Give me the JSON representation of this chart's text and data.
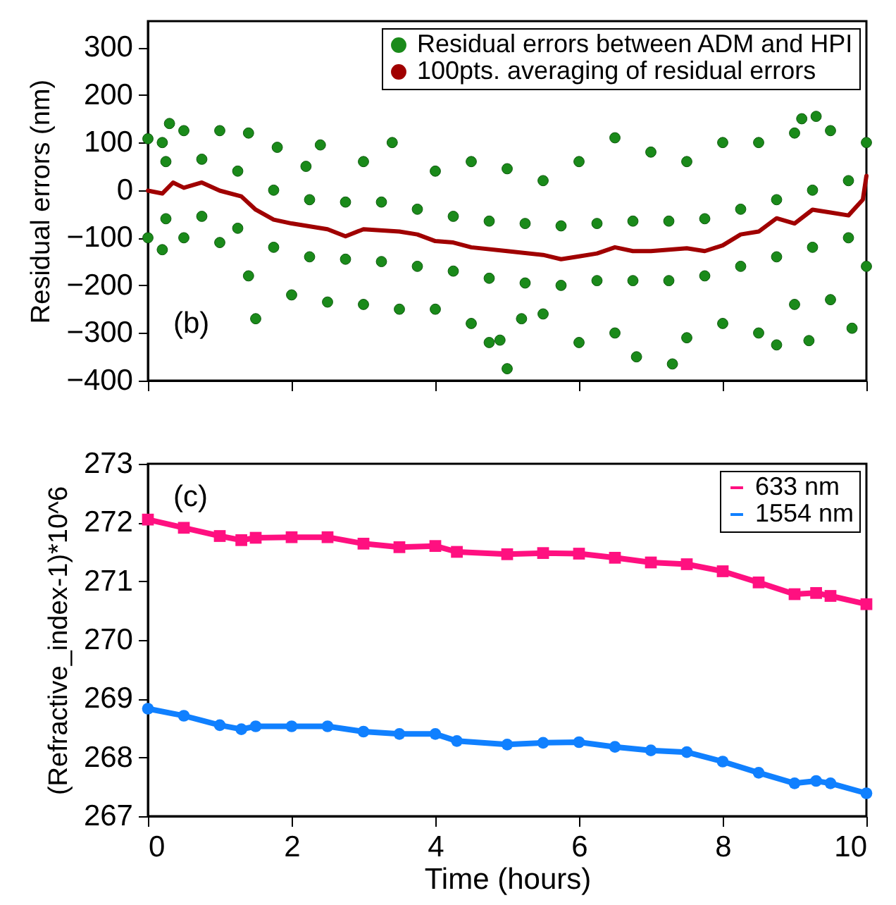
{
  "chart_data": [
    {
      "type": "scatter",
      "ylabel": "Residual errors (nm)",
      "xlim": [
        0,
        10
      ],
      "xticks": [
        0,
        2,
        4,
        6,
        8,
        10
      ],
      "ylim": [
        -400,
        355
      ],
      "yticks": [
        -400,
        -300,
        -200,
        -100,
        0,
        100,
        200,
        300
      ],
      "tick_labels": "y",
      "legend": "top right",
      "grid": false,
      "annotations": [
        "(b)"
      ],
      "series": [
        {
          "name": "Residual errors between ADM and HPI",
          "color": "#1a8a1a",
          "marker": "circle",
          "x": [
            0,
            0.2,
            0.3,
            0.5,
            1,
            1.4,
            1.8,
            2.2,
            2.4,
            3,
            3.4,
            4,
            4.5,
            5,
            5.5,
            6,
            6.5,
            7,
            7.5,
            8,
            8.5,
            9,
            9.1,
            9.3,
            9.5,
            10,
            0,
            0.2,
            0.5,
            1,
            1.4,
            1.5,
            2,
            2.5,
            3,
            3.5,
            4,
            4.5,
            4.75,
            4.9,
            5,
            5.2,
            5.5,
            6,
            6.5,
            6.8,
            7.3,
            7.5,
            8,
            8.5,
            8.75,
            9,
            9.2,
            9.5,
            9.8,
            10,
            0.25,
            0.25,
            0.75,
            0.75,
            1.25,
            1.25,
            1.75,
            1.75,
            2.25,
            2.25,
            2.75,
            2.75,
            3.25,
            3.25,
            3.75,
            3.75,
            4.25,
            4.25,
            4.75,
            4.75,
            5.25,
            5.25,
            5.75,
            5.75,
            6.25,
            6.25,
            6.75,
            6.75,
            7.25,
            7.25,
            7.75,
            7.75,
            8.25,
            8.25,
            8.75,
            8.75,
            9.25,
            9.25,
            9.75,
            9.75
          ],
          "values": [
            108,
            100,
            140,
            125,
            125,
            120,
            90,
            50,
            95,
            60,
            100,
            40,
            60,
            45,
            20,
            60,
            110,
            80,
            60,
            100,
            100,
            120,
            150,
            155,
            125,
            100,
            -100,
            -125,
            -100,
            -110,
            -180,
            -270,
            -220,
            -235,
            -240,
            -250,
            -250,
            -280,
            -320,
            -315,
            -375,
            -270,
            -260,
            -320,
            -300,
            -350,
            -365,
            -310,
            -280,
            -300,
            -325,
            -240,
            -316,
            -230,
            -290,
            -160,
            60,
            -60,
            65,
            -55,
            40,
            -80,
            0,
            -120,
            -20,
            -140,
            -25,
            -145,
            -25,
            -150,
            -40,
            -160,
            -55,
            -170,
            -65,
            -185,
            -70,
            -195,
            -75,
            -200,
            -70,
            -190,
            -65,
            -190,
            -65,
            -190,
            -60,
            -180,
            -40,
            -160,
            -20,
            -140,
            0,
            -120,
            20,
            -100
          ]
        },
        {
          "name": "100pts. averaging of residual errors",
          "type": "line",
          "color": "#a00000",
          "x": [
            0,
            0.2,
            0.35,
            0.5,
            0.75,
            1,
            1.3,
            1.5,
            1.75,
            2,
            2.5,
            2.75,
            3,
            3.5,
            3.75,
            4,
            4.25,
            4.5,
            5,
            5.5,
            5.75,
            6,
            6.25,
            6.5,
            6.75,
            7,
            7.5,
            7.75,
            8,
            8.25,
            8.5,
            8.75,
            9,
            9.25,
            9.5,
            9.75,
            9.95,
            10
          ],
          "values": [
            -1,
            -7,
            16,
            5,
            16,
            -1,
            -13,
            -41,
            -62,
            -70,
            -82,
            -97,
            -82,
            -87,
            -93,
            -107,
            -110,
            -120,
            -128,
            -136,
            -145,
            -139,
            -133,
            -120,
            -128,
            -128,
            -122,
            -128,
            -116,
            -93,
            -87,
            -59,
            -70,
            -41,
            -47,
            -53,
            -20,
            30
          ]
        }
      ]
    },
    {
      "type": "line",
      "xlabel": "Time (hours)",
      "ylabel": "(Refractive_index-1)*10^6",
      "xlim": [
        0,
        10
      ],
      "xticks": [
        0,
        2,
        4,
        6,
        8,
        10
      ],
      "ylim": [
        267,
        273
      ],
      "yticks": [
        267,
        268,
        269,
        270,
        271,
        272,
        273
      ],
      "legend": "top right",
      "grid": false,
      "annotations": [
        "(c)"
      ],
      "x": [
        0,
        0.5,
        1,
        1.3,
        1.5,
        2,
        2.5,
        3,
        3.5,
        4,
        4.3,
        5,
        5.5,
        6,
        6.5,
        7,
        7.5,
        8,
        8.5,
        9,
        9.3,
        9.5,
        10
      ],
      "series": [
        {
          "name": "633 nm",
          "color": "#ff1080",
          "marker": "square",
          "values": [
            272.05,
            271.91,
            271.77,
            271.7,
            271.74,
            271.75,
            271.75,
            271.64,
            271.58,
            271.6,
            271.5,
            271.46,
            271.48,
            271.47,
            271.4,
            271.32,
            271.29,
            271.17,
            270.98,
            270.78,
            270.8,
            270.75,
            270.61
          ]
        },
        {
          "name": "1554 nm",
          "color": "#1080ff",
          "marker": "circle",
          "values": [
            268.83,
            268.71,
            268.55,
            268.48,
            268.53,
            268.53,
            268.53,
            268.44,
            268.4,
            268.4,
            268.28,
            268.22,
            268.25,
            268.26,
            268.18,
            268.12,
            268.09,
            267.93,
            267.74,
            267.56,
            267.6,
            267.56,
            267.39
          ]
        }
      ]
    }
  ]
}
